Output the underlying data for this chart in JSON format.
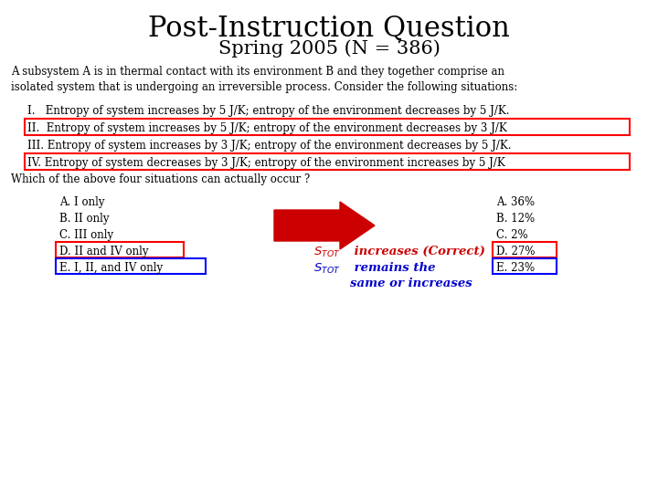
{
  "title": "Post-Instruction Question",
  "subtitle": "Spring 2005 (N = 386)",
  "bg_color": "#ffffff",
  "title_fontsize": 22,
  "subtitle_fontsize": 15,
  "body_fontsize": 8.5,
  "item_fontsize": 8.5,
  "question_fontsize": 8.5,
  "choice_fontsize": 8.5,
  "result_fontsize": 8.5,
  "annot_fontsize": 9.5,
  "body_text": "A subsystem A is in thermal contact with its environment B and they together comprise an\nisolated system that is undergoing an irreversible process. Consider the following situations:",
  "items": [
    {
      "roman": "I.   ",
      "text": "Entropy of system increases by 5 J/K; entropy of the environment decreases by 5 J/K.",
      "boxed_red": false
    },
    {
      "roman": "II.  ",
      "text": "Entropy of system increases by 5 J/K; entropy of the environment decreases by 3 J/K",
      "boxed_red": true
    },
    {
      "roman": "III. ",
      "text": "Entropy of system increases by 3 J/K; entropy of the environment decreases by 5 J/K.",
      "boxed_red": false
    },
    {
      "roman": "IV. ",
      "text": "Entropy of system decreases by 3 J/K; entropy of the environment increases by 5 J/K",
      "boxed_red": true
    }
  ],
  "question": "Which of the above four situations can actually occur ?",
  "choices": [
    "A. I only",
    "B. II only",
    "C. III only",
    "D. II and IV only",
    "E. I, II, and IV only"
  ],
  "results": [
    "A. 36%",
    "B. 12%",
    "C. 2%",
    "D. 27%",
    "E. 23%"
  ],
  "arrow_color": "#cc0000",
  "red_color": "#cc0000",
  "blue_color": "#0000cc"
}
